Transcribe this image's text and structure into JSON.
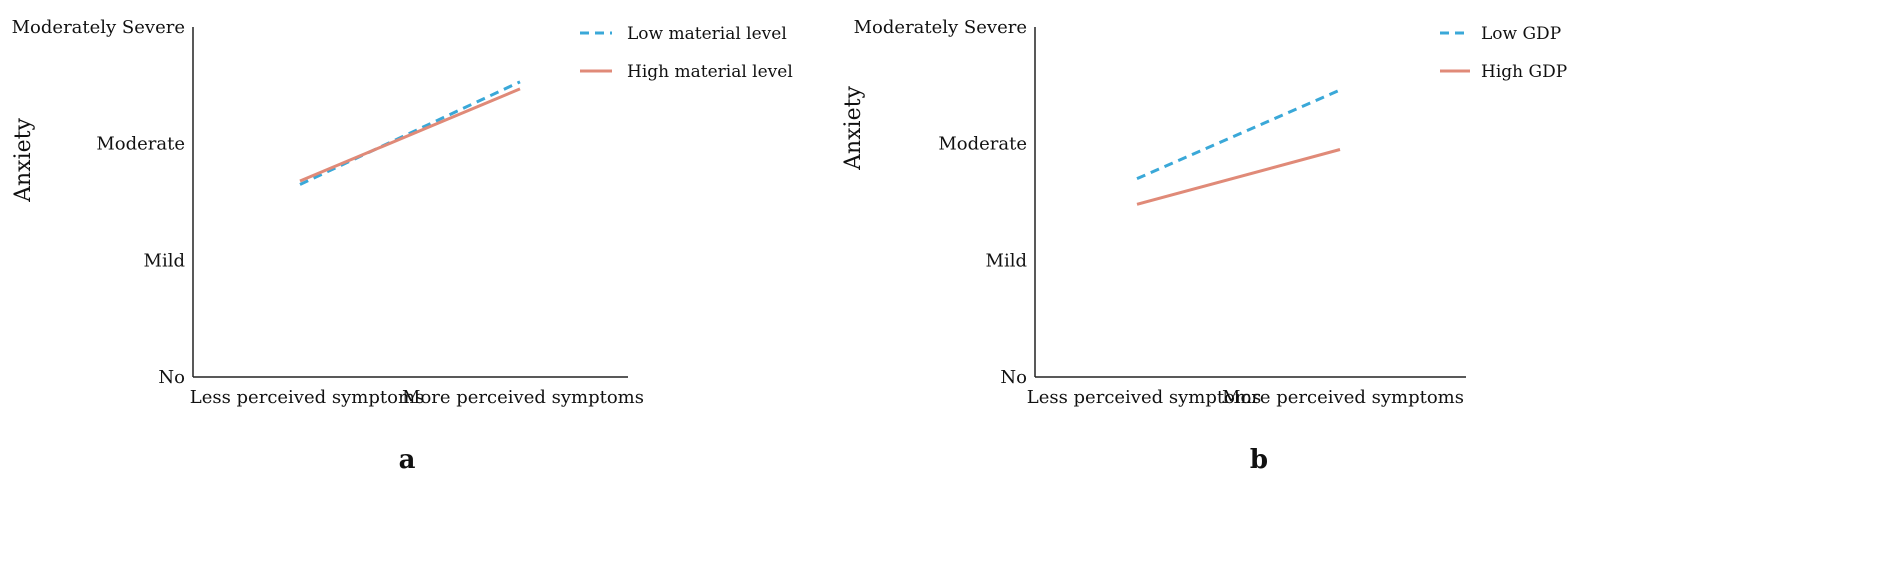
{
  "chart_data": [
    {
      "type": "line",
      "panel_label": "a",
      "title": "",
      "xlabel": "",
      "ylabel": "Anxiety",
      "categories": [
        "Less perceived symptoms",
        "More perceived symptoms"
      ],
      "y_ticks": [
        "No",
        "Mild",
        "Moderate",
        "Moderately Severe"
      ],
      "ylim": [
        0,
        3
      ],
      "grid": false,
      "legend_position": "top-right",
      "series": [
        {
          "name": "Low material level",
          "values": [
            1.65,
            2.53
          ],
          "color": "#3aa8d8",
          "style": "dashed"
        },
        {
          "name": "High material level",
          "values": [
            1.68,
            2.47
          ],
          "color": "#e08a78",
          "style": "solid"
        }
      ]
    },
    {
      "type": "line",
      "panel_label": "b",
      "title": "",
      "xlabel": "",
      "ylabel": "Anxiety",
      "categories": [
        "Less perceived symptoms",
        "More perceived symptoms"
      ],
      "y_ticks": [
        "No",
        "Mild",
        "Moderate",
        "Moderately Severe"
      ],
      "ylim": [
        0,
        3
      ],
      "grid": false,
      "legend_position": "top-right",
      "series": [
        {
          "name": "Low GDP",
          "values": [
            1.7,
            2.46
          ],
          "color": "#3aa8d8",
          "style": "dashed"
        },
        {
          "name": "High GDP",
          "values": [
            1.48,
            1.95
          ],
          "color": "#e08a78",
          "style": "solid"
        }
      ]
    }
  ]
}
